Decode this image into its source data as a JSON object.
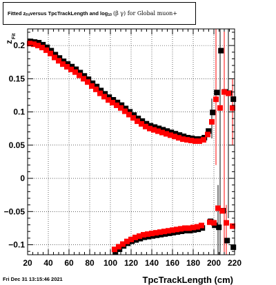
{
  "title": {
    "part1": "Fitted  z",
    "part1_sub": "Fit",
    "part2": "  versus TpcTrackLength and log",
    "part2_sub": "10",
    "part3": "(β γ) for Global muon+"
  },
  "footer": {
    "timestamp": "Fri Dec 31 13:15:46 2021"
  },
  "axes": {
    "xlabel": "TpcTrackLength (cm)",
    "ylabel_main": "z",
    "ylabel_sub": "Fit"
  },
  "colors": {
    "series_black": "#000000",
    "series_red": "#ff0000",
    "grid": "#000000"
  },
  "chart_data": {
    "type": "scatter",
    "xlim": [
      20,
      220
    ],
    "ylim": [
      -0.115,
      0.225
    ],
    "xticks": [
      20,
      40,
      60,
      80,
      100,
      120,
      140,
      160,
      180,
      200,
      220
    ],
    "yticks": [
      -0.1,
      -0.05,
      0,
      0.05,
      0.1,
      0.15,
      0.2
    ],
    "ytick_labels": [
      "−0.1",
      "−0.05",
      "0",
      "0.05",
      "0.1",
      "0.15",
      "0.2"
    ],
    "grid": true,
    "series": [
      {
        "color": "black",
        "marker": "square",
        "upper": [
          [
            22,
            0.205
          ],
          [
            26,
            0.204
          ],
          [
            30,
            0.203
          ],
          [
            34,
            0.2
          ],
          [
            38,
            0.196
          ],
          [
            42,
            0.191
          ],
          [
            46,
            0.185
          ],
          [
            50,
            0.18
          ],
          [
            54,
            0.175
          ],
          [
            58,
            0.171
          ],
          [
            62,
            0.167
          ],
          [
            66,
            0.163
          ],
          [
            70,
            0.158
          ],
          [
            74,
            0.153
          ],
          [
            78,
            0.148
          ],
          [
            82,
            0.142
          ],
          [
            86,
            0.137
          ],
          [
            90,
            0.131
          ],
          [
            94,
            0.126
          ],
          [
            98,
            0.121
          ],
          [
            102,
            0.117
          ],
          [
            106,
            0.113
          ],
          [
            110,
            0.109
          ],
          [
            114,
            0.104
          ],
          [
            118,
            0.099
          ],
          [
            122,
            0.094
          ],
          [
            126,
            0.089
          ],
          [
            130,
            0.085
          ],
          [
            134,
            0.081
          ],
          [
            138,
            0.078
          ],
          [
            142,
            0.076
          ],
          [
            146,
            0.074
          ],
          [
            150,
            0.072
          ],
          [
            154,
            0.07
          ],
          [
            158,
            0.068
          ],
          [
            162,
            0.066
          ],
          [
            166,
            0.064
          ],
          [
            170,
            0.062
          ],
          [
            174,
            0.06
          ],
          [
            178,
            0.059
          ],
          [
            182,
            0.058
          ],
          [
            186,
            0.058
          ],
          [
            190,
            0.06
          ],
          [
            194,
            0.07
          ],
          [
            198,
            0.098
          ],
          [
            202,
            0.128
          ],
          [
            206,
            0.191
          ],
          [
            210,
            0.129
          ],
          [
            214,
            0.127
          ],
          [
            218,
            0.118
          ]
        ],
        "lower": [
          [
            104,
            -0.112
          ],
          [
            108,
            -0.108
          ],
          [
            112,
            -0.103
          ],
          [
            116,
            -0.099
          ],
          [
            120,
            -0.096
          ],
          [
            124,
            -0.094
          ],
          [
            128,
            -0.092
          ],
          [
            132,
            -0.09
          ],
          [
            136,
            -0.089
          ],
          [
            140,
            -0.088
          ],
          [
            144,
            -0.087
          ],
          [
            148,
            -0.086
          ],
          [
            152,
            -0.085
          ],
          [
            156,
            -0.084
          ],
          [
            160,
            -0.083
          ],
          [
            164,
            -0.082
          ],
          [
            168,
            -0.081
          ],
          [
            172,
            -0.08
          ],
          [
            176,
            -0.08
          ],
          [
            180,
            -0.079
          ],
          [
            184,
            -0.078
          ],
          [
            188,
            -0.076
          ],
          [
            196,
            -0.066
          ],
          [
            200,
            -0.072
          ],
          [
            204,
            -0.075
          ],
          [
            208,
            -0.05
          ],
          [
            212,
            -0.095
          ],
          [
            218,
            -0.105
          ]
        ]
      },
      {
        "color": "red",
        "marker": "square",
        "upper": [
          [
            22,
            0.203
          ],
          [
            26,
            0.202
          ],
          [
            30,
            0.2
          ],
          [
            34,
            0.197
          ],
          [
            38,
            0.193
          ],
          [
            42,
            0.188
          ],
          [
            46,
            0.182
          ],
          [
            50,
            0.177
          ],
          [
            54,
            0.172
          ],
          [
            58,
            0.168
          ],
          [
            62,
            0.164
          ],
          [
            66,
            0.16
          ],
          [
            70,
            0.155
          ],
          [
            74,
            0.15
          ],
          [
            78,
            0.145
          ],
          [
            82,
            0.139
          ],
          [
            86,
            0.134
          ],
          [
            90,
            0.128
          ],
          [
            94,
            0.123
          ],
          [
            98,
            0.118
          ],
          [
            102,
            0.114
          ],
          [
            106,
            0.11
          ],
          [
            110,
            0.106
          ],
          [
            114,
            0.101
          ],
          [
            118,
            0.096
          ],
          [
            122,
            0.091
          ],
          [
            126,
            0.086
          ],
          [
            130,
            0.082
          ],
          [
            134,
            0.078
          ],
          [
            138,
            0.075
          ],
          [
            142,
            0.073
          ],
          [
            146,
            0.071
          ],
          [
            150,
            0.069
          ],
          [
            154,
            0.067
          ],
          [
            158,
            0.065
          ],
          [
            162,
            0.063
          ],
          [
            166,
            0.061
          ],
          [
            170,
            0.059
          ],
          [
            174,
            0.058
          ],
          [
            178,
            0.057
          ],
          [
            182,
            0.056
          ],
          [
            186,
            0.056
          ],
          [
            190,
            0.058
          ],
          [
            194,
            0.066
          ],
          [
            198,
            0.085
          ],
          [
            202,
            0.119
          ],
          [
            206,
            0.106
          ],
          [
            210,
            0.13
          ],
          [
            214,
            0.128
          ],
          [
            218,
            0.106
          ]
        ],
        "lower": [
          [
            104,
            -0.107
          ],
          [
            108,
            -0.103
          ],
          [
            112,
            -0.099
          ],
          [
            116,
            -0.095
          ],
          [
            120,
            -0.092
          ],
          [
            124,
            -0.089
          ],
          [
            128,
            -0.087
          ],
          [
            132,
            -0.085
          ],
          [
            136,
            -0.084
          ],
          [
            140,
            -0.083
          ],
          [
            144,
            -0.082
          ],
          [
            148,
            -0.081
          ],
          [
            152,
            -0.08
          ],
          [
            156,
            -0.079
          ],
          [
            160,
            -0.078
          ],
          [
            164,
            -0.077
          ],
          [
            168,
            -0.076
          ],
          [
            172,
            -0.075
          ],
          [
            176,
            -0.075
          ],
          [
            180,
            -0.074
          ],
          [
            184,
            -0.073
          ],
          [
            188,
            -0.071
          ],
          [
            196,
            -0.066
          ],
          [
            200,
            -0.067
          ],
          [
            204,
            -0.045
          ],
          [
            208,
            -0.049
          ],
          [
            212,
            -0.067
          ],
          [
            218,
            -0.072
          ]
        ]
      }
    ],
    "error_bars": [
      {
        "x": 198,
        "lo": 0.06,
        "hi": 0.12
      },
      {
        "x": 202,
        "lo": 0.02,
        "hi": 0.23
      },
      {
        "x": 206,
        "lo": -0.12,
        "hi": 0.23
      },
      {
        "x": 210,
        "lo": -0.12,
        "hi": 0.23
      },
      {
        "x": 214,
        "lo": -0.06,
        "hi": 0.23
      },
      {
        "x": 218,
        "lo": 0.05,
        "hi": 0.15
      },
      {
        "x": 204,
        "lo": -0.12,
        "hi": -0.01
      },
      {
        "x": 212,
        "lo": -0.12,
        "hi": -0.04
      }
    ]
  }
}
